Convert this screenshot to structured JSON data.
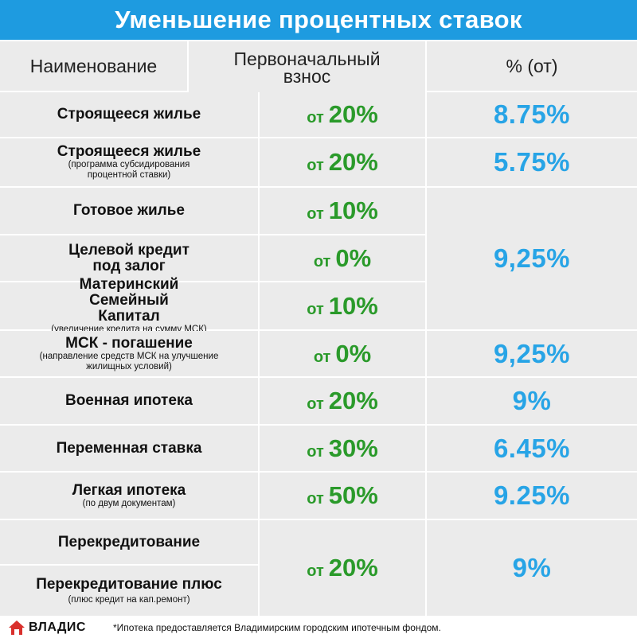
{
  "title": "Уменьшение процентных ставок",
  "columns": {
    "name": "Наименование",
    "down_payment": "Первоначальный взнос",
    "rate": "% (от)"
  },
  "rows": [
    {
      "name": "Строящееся жилье",
      "note": "",
      "prefix": "от",
      "down": "20%",
      "rate": "8.75%"
    },
    {
      "name": "Строящееся жилье",
      "note": "(программа субсидирования процентной ставки)",
      "prefix": "от",
      "down": "20%",
      "rate": "5.75%"
    },
    {
      "name": "Готовое жилье",
      "note": "",
      "prefix": "от",
      "down": "10%",
      "rate": ""
    },
    {
      "name": "Целевой кредит под залог",
      "note": "",
      "prefix": "от",
      "down": "0%",
      "rate": "9,25%"
    },
    {
      "name": "Материнский Семейный Капитал",
      "note": "(увеличение кредита на сумму МСК)",
      "prefix": "от",
      "down": "10%",
      "rate": ""
    },
    {
      "name": "МСК - погашение",
      "note": "(направление средств МСК на улучшение жилищных условий)",
      "prefix": "от",
      "down": "0%",
      "rate": "9,25%"
    },
    {
      "name": "Военная ипотека",
      "note": "",
      "prefix": "от",
      "down": "20%",
      "rate": "9%"
    },
    {
      "name": "Переменная ставка",
      "note": "",
      "prefix": "от",
      "down": "30%",
      "rate": "6.45%"
    },
    {
      "name": "Легкая ипотека",
      "note": "(по двум документам)",
      "prefix": "от",
      "down": "50%",
      "rate": "9.25%"
    },
    {
      "name": "Перекредитование",
      "note": "",
      "prefix": "от",
      "down": "20%",
      "rate": "9%"
    },
    {
      "name": "Перекредитование плюс",
      "note": "(плюс кредит на кап.ремонт)",
      "prefix": "",
      "down": "",
      "rate": ""
    }
  ],
  "footer": {
    "logo_text": "ВЛАДИС",
    "note": "*Ипотека предоставляется Владимирским городским ипотечным фондом."
  },
  "colors": {
    "title_bg": "#1e9be0",
    "cell_bg": "#ebebeb",
    "down_green": "#2a9a2a",
    "rate_blue": "#27a4e6",
    "logo_red": "#d9302c"
  },
  "icons": {
    "logo": "house-logo-icon"
  }
}
